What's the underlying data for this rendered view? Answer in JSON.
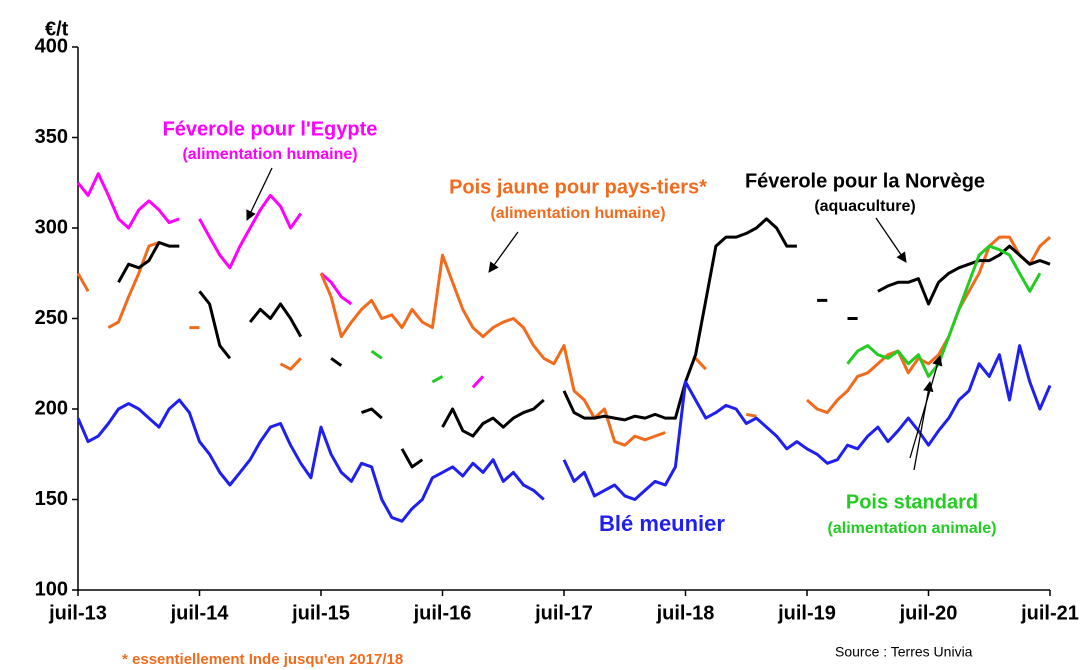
{
  "chart_data": {
    "type": "line",
    "y_label": "€/t",
    "xlim": [
      0,
      96
    ],
    "xticks": [
      {
        "value": 0,
        "label": "juil-13"
      },
      {
        "value": 12,
        "label": "juil-14"
      },
      {
        "value": 24,
        "label": "juil-15"
      },
      {
        "value": 36,
        "label": "juil-16"
      },
      {
        "value": 48,
        "label": "juil-17"
      },
      {
        "value": 60,
        "label": "juil-18"
      },
      {
        "value": 72,
        "label": "juil-19"
      },
      {
        "value": 84,
        "label": "juil-20"
      },
      {
        "value": 96,
        "label": "juil-21"
      }
    ],
    "ylim": [
      100,
      400
    ],
    "yticks": [
      100,
      150,
      200,
      250,
      300,
      350,
      400
    ],
    "grid": false,
    "x": [
      0,
      1,
      2,
      3,
      4,
      5,
      6,
      7,
      8,
      9,
      10,
      11,
      12,
      13,
      14,
      15,
      16,
      17,
      18,
      19,
      20,
      21,
      22,
      23,
      24,
      25,
      26,
      27,
      28,
      29,
      30,
      31,
      32,
      33,
      34,
      35,
      36,
      37,
      38,
      39,
      40,
      41,
      42,
      43,
      44,
      45,
      46,
      47,
      48,
      49,
      50,
      51,
      52,
      53,
      54,
      55,
      56,
      57,
      58,
      59,
      60,
      61,
      62,
      63,
      64,
      65,
      66,
      67,
      68,
      69,
      70,
      71,
      72,
      73,
      74,
      75,
      76,
      77,
      78,
      79,
      80,
      81,
      82,
      83,
      84,
      85,
      86,
      87,
      88,
      89,
      90,
      91,
      92,
      93,
      94,
      95,
      96
    ],
    "series": [
      {
        "name": "Féverole pour l'Egypte",
        "note": "(alimentation humaine)",
        "color": "#ff00ff",
        "values": [
          325,
          318,
          330,
          318,
          305,
          300,
          310,
          315,
          310,
          303,
          305,
          null,
          305,
          295,
          285,
          278,
          290,
          300,
          310,
          318,
          312,
          300,
          308,
          null,
          275,
          270,
          262,
          258,
          null,
          null,
          null,
          null,
          null,
          null,
          null,
          null,
          null,
          null,
          null,
          212,
          218,
          null,
          null,
          null,
          null,
          null,
          null,
          null,
          null,
          null,
          null,
          null,
          null,
          null,
          null,
          null,
          null,
          null,
          null,
          null,
          null,
          null,
          null,
          null,
          null,
          null,
          null,
          null,
          null,
          null,
          null,
          null,
          null,
          null,
          null,
          null,
          null,
          null,
          null,
          null,
          null,
          null,
          null,
          null,
          null,
          null,
          null,
          null,
          null,
          null,
          null,
          null,
          null,
          null,
          null,
          null,
          null
        ]
      },
      {
        "name": "Pois jaune pour pays-tiers*",
        "note": "(alimentation humaine)",
        "color": "#f26b1d",
        "values": [
          275,
          265,
          null,
          245,
          248,
          262,
          275,
          290,
          292,
          null,
          null,
          245,
          245,
          null,
          null,
          null,
          null,
          null,
          null,
          null,
          225,
          222,
          228,
          null,
          275,
          262,
          240,
          248,
          255,
          260,
          250,
          252,
          245,
          255,
          248,
          245,
          285,
          270,
          255,
          245,
          240,
          245,
          248,
          250,
          245,
          235,
          228,
          225,
          235,
          210,
          205,
          195,
          200,
          182,
          180,
          185,
          183,
          185,
          187,
          null,
          null,
          228,
          222,
          null,
          null,
          null,
          197,
          196,
          null,
          null,
          null,
          null,
          205,
          200,
          198,
          205,
          210,
          218,
          220,
          225,
          230,
          232,
          220,
          228,
          225,
          230,
          240,
          255,
          265,
          275,
          290,
          295,
          295,
          285,
          280,
          290,
          295
        ]
      },
      {
        "name": "Féverole pour la Norvège",
        "note": "(aquaculture)",
        "color": "#000000",
        "values": [
          null,
          null,
          null,
          null,
          270,
          280,
          278,
          282,
          292,
          290,
          290,
          null,
          265,
          258,
          235,
          228,
          null,
          248,
          255,
          250,
          258,
          250,
          240,
          null,
          null,
          228,
          224,
          null,
          198,
          200,
          195,
          null,
          178,
          168,
          172,
          null,
          190,
          200,
          188,
          185,
          192,
          195,
          190,
          195,
          198,
          200,
          205,
          null,
          210,
          198,
          195,
          195,
          196,
          195,
          194,
          196,
          195,
          197,
          195,
          195,
          215,
          230,
          260,
          290,
          295,
          295,
          297,
          300,
          305,
          300,
          290,
          290,
          null,
          260,
          260,
          null,
          250,
          250,
          null,
          265,
          268,
          270,
          270,
          272,
          258,
          270,
          275,
          278,
          280,
          282,
          282,
          285,
          290,
          285,
          280,
          282,
          280
        ]
      },
      {
        "name": "Pois standard",
        "note": "(alimentation animale)",
        "color": "#22cc22",
        "values": [
          null,
          null,
          null,
          null,
          null,
          null,
          null,
          null,
          null,
          null,
          null,
          null,
          null,
          null,
          null,
          null,
          null,
          null,
          null,
          null,
          null,
          null,
          null,
          null,
          null,
          null,
          null,
          null,
          null,
          232,
          228,
          null,
          null,
          null,
          null,
          215,
          218,
          null,
          null,
          null,
          null,
          null,
          null,
          null,
          null,
          null,
          null,
          null,
          null,
          null,
          null,
          null,
          null,
          null,
          null,
          null,
          null,
          null,
          null,
          null,
          null,
          null,
          null,
          null,
          null,
          null,
          null,
          null,
          null,
          null,
          null,
          null,
          null,
          null,
          null,
          null,
          225,
          232,
          235,
          230,
          228,
          232,
          225,
          230,
          218,
          225,
          240,
          255,
          270,
          285,
          290,
          288,
          285,
          275,
          265,
          275,
          null
        ]
      },
      {
        "name": "Blé meunier",
        "color": "#1f1fef",
        "values": [
          195,
          182,
          185,
          192,
          200,
          203,
          200,
          195,
          190,
          200,
          205,
          198,
          182,
          175,
          165,
          158,
          165,
          172,
          182,
          190,
          192,
          180,
          170,
          162,
          190,
          175,
          165,
          160,
          170,
          168,
          150,
          140,
          138,
          145,
          150,
          162,
          165,
          168,
          163,
          170,
          165,
          172,
          160,
          165,
          158,
          155,
          150,
          null,
          172,
          160,
          165,
          152,
          155,
          158,
          152,
          150,
          155,
          160,
          158,
          168,
          215,
          205,
          195,
          198,
          202,
          200,
          192,
          195,
          190,
          185,
          178,
          182,
          178,
          175,
          170,
          172,
          180,
          178,
          185,
          190,
          182,
          188,
          195,
          188,
          180,
          188,
          195,
          205,
          210,
          225,
          218,
          230,
          205,
          235,
          215,
          200,
          213
        ]
      }
    ],
    "footnote": "* essentiellement Inde jusqu'en 2017/18",
    "source": "Source : Terres Univia"
  }
}
